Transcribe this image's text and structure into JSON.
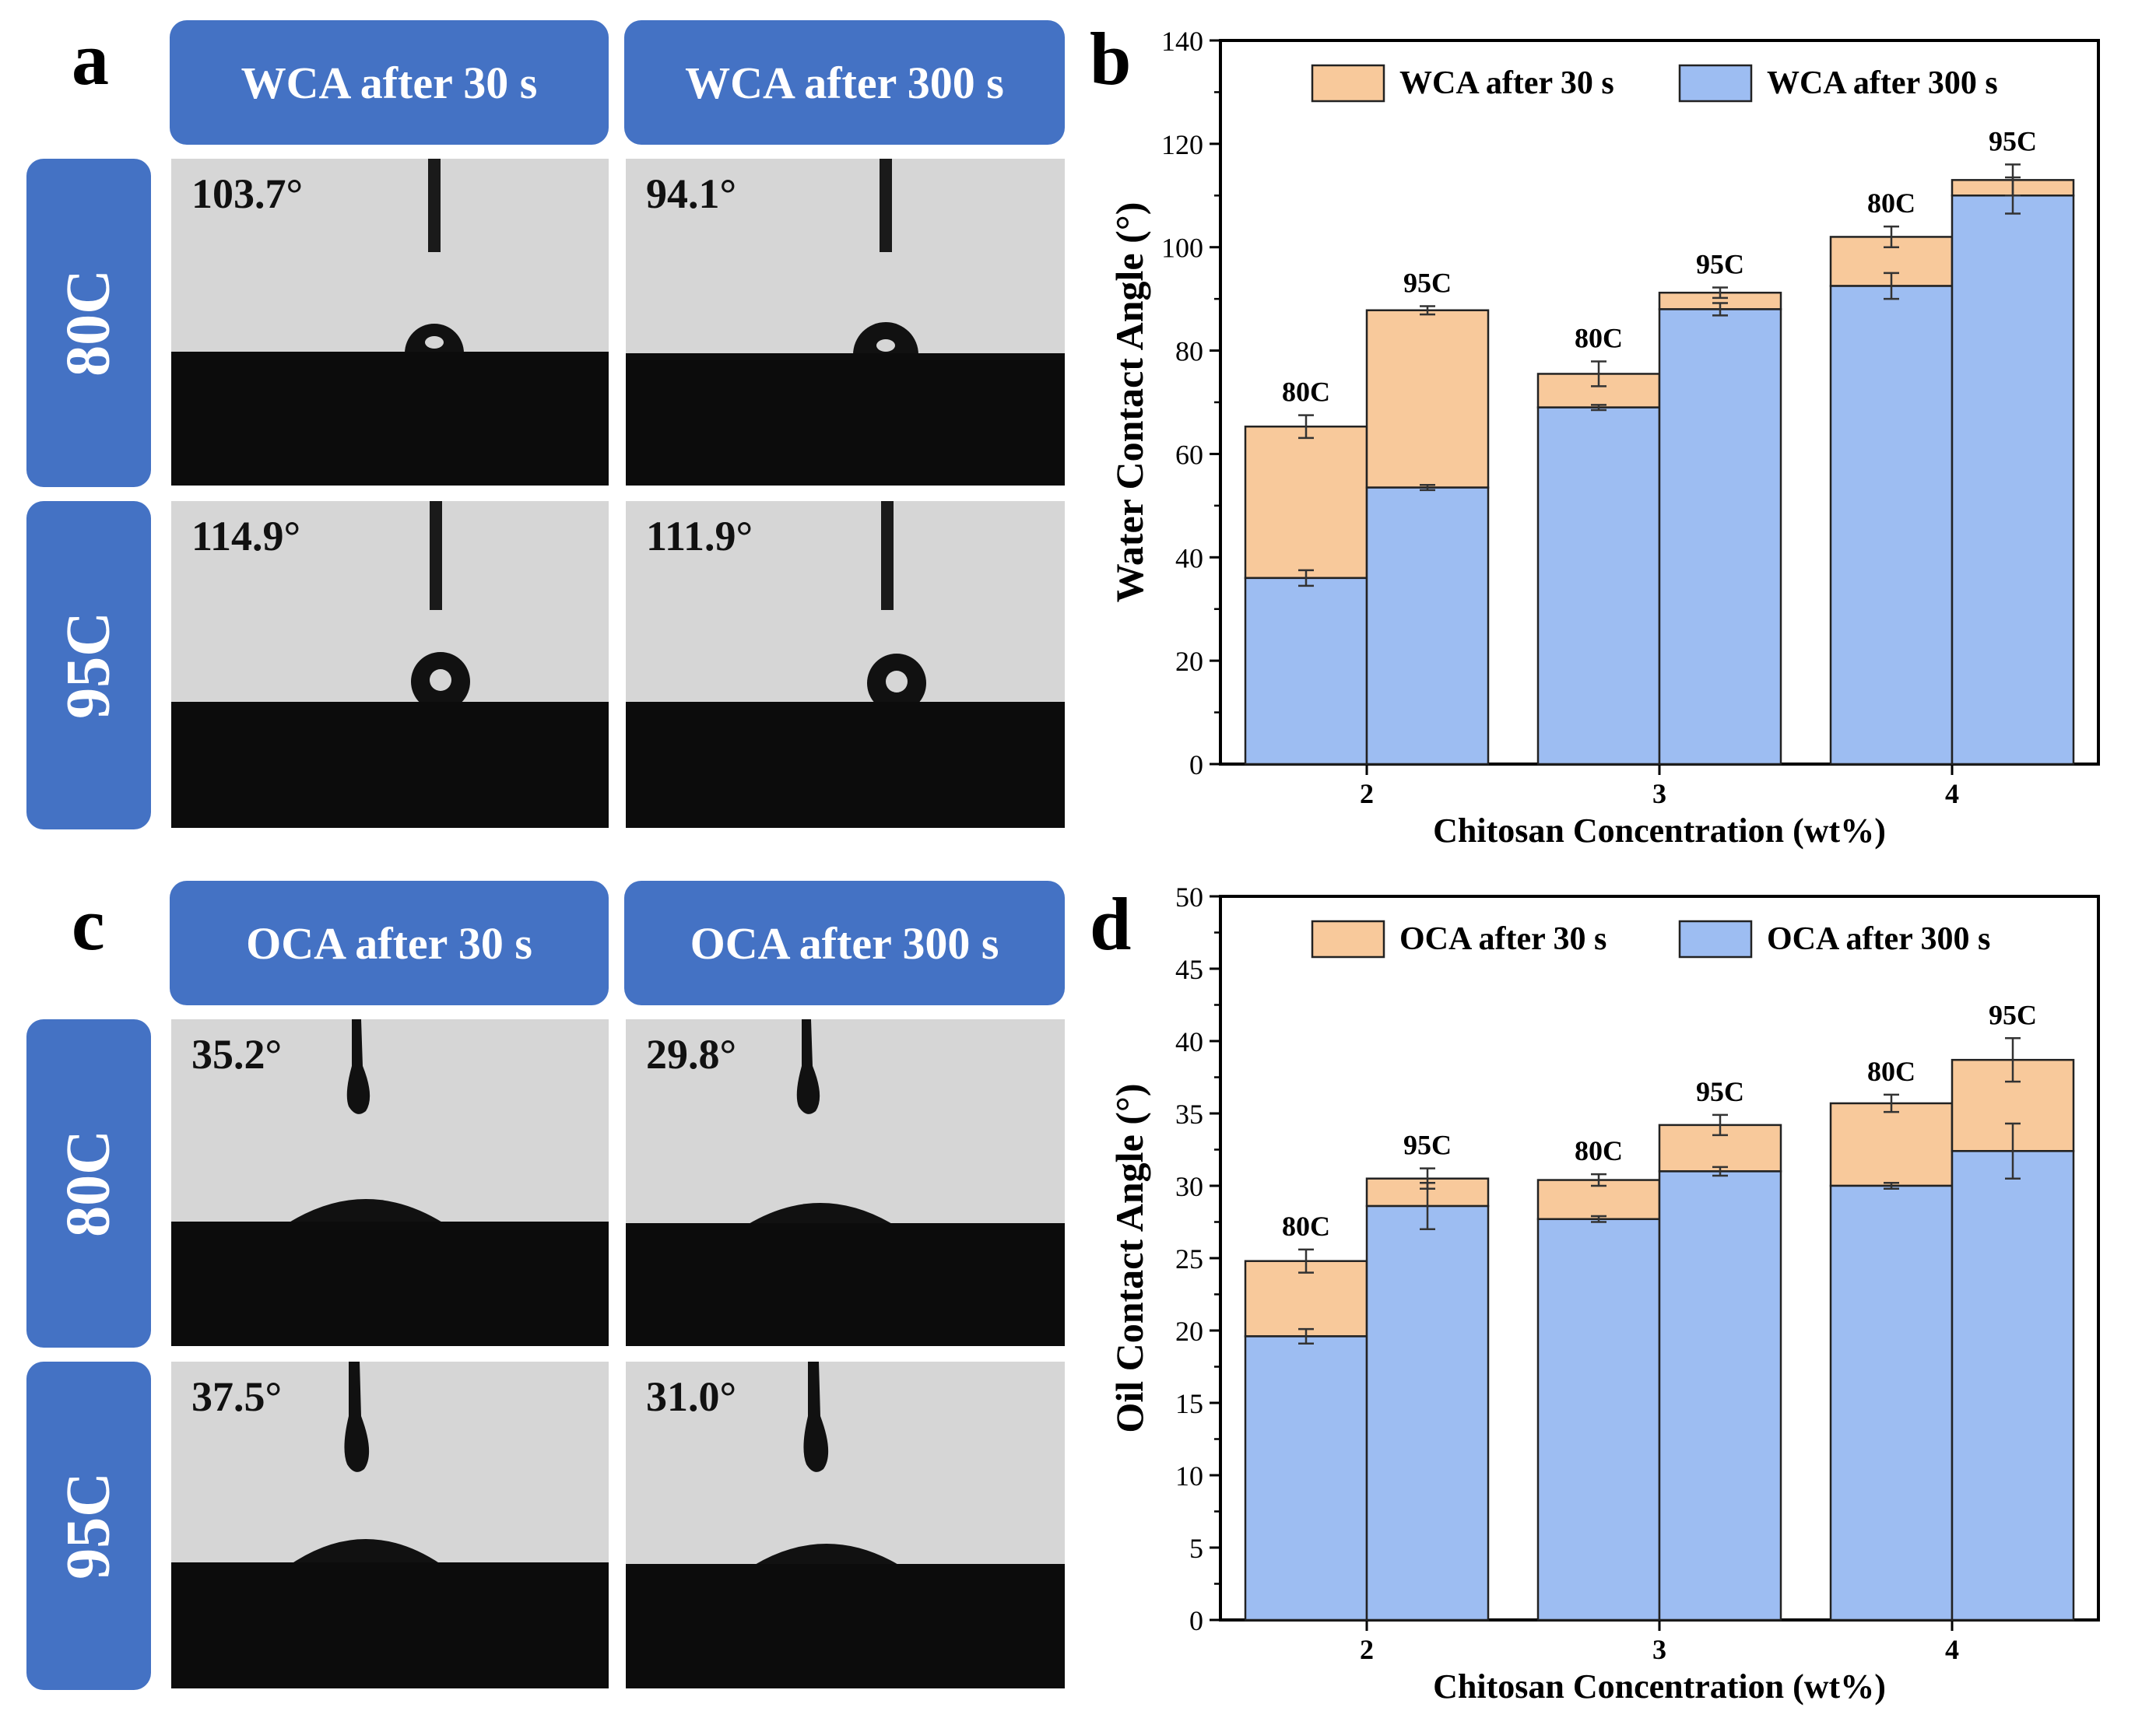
{
  "panel_labels": {
    "a": "a",
    "b": "b",
    "c": "c",
    "d": "d"
  },
  "panel_a": {
    "headers": [
      "WCA after 30 s",
      "WCA after 300 s"
    ],
    "rows": [
      "80C",
      "95C"
    ],
    "angles": [
      [
        "103.7°",
        "94.1°"
      ],
      [
        "114.9°",
        "111.9°"
      ]
    ]
  },
  "panel_c": {
    "headers": [
      "OCA after 30 s",
      "OCA after 300 s"
    ],
    "rows": [
      "80C",
      "95C"
    ],
    "angles": [
      [
        "35.2°",
        "29.8°"
      ],
      [
        "37.5°",
        "31.0°"
      ]
    ]
  },
  "colors": {
    "orange": "#f8c99b",
    "blue": "#9dbdf2",
    "header_blue": "#4472c4"
  },
  "chart_data": [
    {
      "type": "bar",
      "panel": "b",
      "stacked": true,
      "ylabel": "Water Contact Angle (°)",
      "xlabel": "Chitosan Concentration (wt%)",
      "ylim": [
        0,
        140
      ],
      "yticks": [
        0,
        20,
        40,
        60,
        80,
        100,
        120,
        140
      ],
      "categories": [
        "2",
        "3",
        "4"
      ],
      "bar_labels": [
        "80C",
        "95C"
      ],
      "legend": {
        "position": "top",
        "entries": [
          "WCA after 30 s",
          "WCA after 300 s"
        ]
      },
      "series": [
        {
          "name": "WCA after 300 s",
          "values": [
            [
              36,
              53.5
            ],
            [
              69,
              88
            ],
            [
              92.5,
              110
            ]
          ],
          "errors": [
            [
              1.5,
              0.5
            ],
            [
              0.5,
              1.2
            ],
            [
              2.5,
              3.5
            ]
          ]
        },
        {
          "name": "WCA after 30 s",
          "values": [
            [
              65.3,
              87.8
            ],
            [
              75.5,
              91.2
            ],
            [
              102,
              113
            ]
          ],
          "errors": [
            [
              2.2,
              0.8
            ],
            [
              2.4,
              1
            ],
            [
              2,
              3
            ]
          ]
        }
      ]
    },
    {
      "type": "bar",
      "panel": "d",
      "stacked": true,
      "ylabel": "Oil Contact Angle (°)",
      "xlabel": "Chitosan Concentration (wt%)",
      "ylim": [
        0,
        50
      ],
      "yticks": [
        0,
        5,
        10,
        15,
        20,
        25,
        30,
        35,
        40,
        45,
        50
      ],
      "categories": [
        "2",
        "3",
        "4"
      ],
      "bar_labels": [
        "80C",
        "95C"
      ],
      "legend": {
        "position": "top",
        "entries": [
          "OCA after 30 s",
          "OCA after 300 s"
        ]
      },
      "series": [
        {
          "name": "OCA after 300 s",
          "values": [
            [
              19.6,
              28.6
            ],
            [
              27.7,
              31
            ],
            [
              30,
              32.4
            ]
          ],
          "errors": [
            [
              0.5,
              1.6
            ],
            [
              0.2,
              0.3
            ],
            [
              0.2,
              1.9
            ]
          ]
        },
        {
          "name": "OCA after 30 s",
          "values": [
            [
              24.8,
              30.5
            ],
            [
              30.4,
              34.2
            ],
            [
              35.7,
              38.7
            ]
          ],
          "errors": [
            [
              0.8,
              0.7
            ],
            [
              0.4,
              0.7
            ],
            [
              0.6,
              1.5
            ]
          ]
        }
      ]
    }
  ]
}
